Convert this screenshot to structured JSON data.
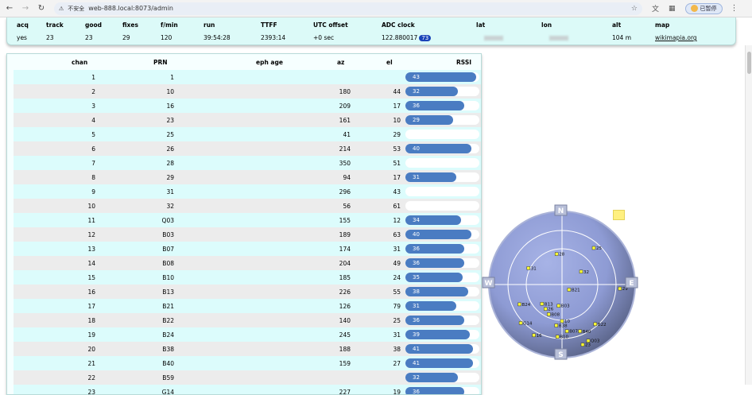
{
  "browser": {
    "security_label": "不安全",
    "url": "web-888.local:8073/admin",
    "profile_label": "已暂停"
  },
  "status": {
    "headers": [
      "acq",
      "track",
      "good",
      "fixes",
      "f/min",
      "run",
      "TTFF",
      "UTC offset",
      "ADC clock",
      "lat",
      "lon",
      "alt",
      "map"
    ],
    "acq": "yes",
    "track": "23",
    "good": "23",
    "fixes": "29",
    "fmin": "120",
    "run": "39:54:28",
    "ttff": "2393:14",
    "utc_offset": "+0 sec",
    "adc_clock": "122.880017",
    "adc_badge": "73",
    "alt": "104 m",
    "map_link": "wikimapia.org"
  },
  "table": {
    "headers": {
      "chan": "chan",
      "prn": "PRN",
      "eph_age": "eph age",
      "az": "az",
      "el": "el",
      "rssi": "RSSI"
    },
    "rows": [
      {
        "chan": "1",
        "prn": "1",
        "az": "",
        "el": "",
        "rssi": 43
      },
      {
        "chan": "2",
        "prn": "10",
        "az": "180",
        "el": "44",
        "rssi": 32
      },
      {
        "chan": "3",
        "prn": "16",
        "az": "209",
        "el": "17",
        "rssi": 36
      },
      {
        "chan": "4",
        "prn": "23",
        "az": "161",
        "el": "10",
        "rssi": 29
      },
      {
        "chan": "5",
        "prn": "25",
        "az": "41",
        "el": "29",
        "rssi": null
      },
      {
        "chan": "6",
        "prn": "26",
        "az": "214",
        "el": "53",
        "rssi": 40
      },
      {
        "chan": "7",
        "prn": "28",
        "az": "350",
        "el": "51",
        "rssi": null
      },
      {
        "chan": "8",
        "prn": "29",
        "az": "94",
        "el": "17",
        "rssi": 31
      },
      {
        "chan": "9",
        "prn": "31",
        "az": "296",
        "el": "43",
        "rssi": null
      },
      {
        "chan": "10",
        "prn": "32",
        "az": "56",
        "el": "61",
        "rssi": null
      },
      {
        "chan": "11",
        "prn": "Q03",
        "az": "155",
        "el": "12",
        "rssi": 34
      },
      {
        "chan": "12",
        "prn": "B03",
        "az": "189",
        "el": "63",
        "rssi": 40
      },
      {
        "chan": "13",
        "prn": "B07",
        "az": "174",
        "el": "31",
        "rssi": 36
      },
      {
        "chan": "14",
        "prn": "B08",
        "az": "204",
        "el": "49",
        "rssi": 36
      },
      {
        "chan": "15",
        "prn": "B10",
        "az": "185",
        "el": "24",
        "rssi": 35
      },
      {
        "chan": "16",
        "prn": "B13",
        "az": "226",
        "el": "55",
        "rssi": 38
      },
      {
        "chan": "17",
        "prn": "B21",
        "az": "126",
        "el": "79",
        "rssi": 31
      },
      {
        "chan": "18",
        "prn": "B22",
        "az": "140",
        "el": "25",
        "rssi": 36
      },
      {
        "chan": "19",
        "prn": "B24",
        "az": "245",
        "el": "31",
        "rssi": 39
      },
      {
        "chan": "20",
        "prn": "B38",
        "az": "188",
        "el": "38",
        "rssi": 41
      },
      {
        "chan": "21",
        "prn": "B40",
        "az": "159",
        "el": "27",
        "rssi": 41
      },
      {
        "chan": "22",
        "prn": "B59",
        "az": "",
        "el": "",
        "rssi": 32
      },
      {
        "chan": "23",
        "prn": "G14",
        "az": "227",
        "el": "19",
        "rssi": 36
      }
    ]
  },
  "skyplot": {
    "compass": {
      "n": "N",
      "e": "E",
      "s": "S",
      "w": "W"
    },
    "satellites": [
      {
        "label": "25",
        "az": 41,
        "el": 29
      },
      {
        "label": "28",
        "az": 350,
        "el": 51
      },
      {
        "label": "31",
        "az": 296,
        "el": 43
      },
      {
        "label": "32",
        "az": 56,
        "el": 61
      },
      {
        "label": "29",
        "az": 94,
        "el": 17
      },
      {
        "label": "B21",
        "az": 126,
        "el": 79
      },
      {
        "label": "B24",
        "az": 245,
        "el": 31
      },
      {
        "label": "B13",
        "az": 226,
        "el": 55
      },
      {
        "label": "B03",
        "az": 189,
        "el": 63
      },
      {
        "label": "26",
        "az": 214,
        "el": 53
      },
      {
        "label": "B08",
        "az": 204,
        "el": 49
      },
      {
        "label": "10",
        "az": 180,
        "el": 44
      },
      {
        "label": "B38",
        "az": 188,
        "el": 38
      },
      {
        "label": "B07",
        "az": 174,
        "el": 31
      },
      {
        "label": "G14",
        "az": 227,
        "el": 19
      },
      {
        "label": "16",
        "az": 209,
        "el": 17
      },
      {
        "label": "B22",
        "az": 140,
        "el": 25
      },
      {
        "label": "B40",
        "az": 159,
        "el": 27
      },
      {
        "label": "B10",
        "az": 185,
        "el": 24
      },
      {
        "label": "Q03",
        "az": 155,
        "el": 12
      },
      {
        "label": "23",
        "az": 161,
        "el": 10
      }
    ]
  },
  "colors": {
    "panel_bg": "#dcfaf8",
    "rssi_bar": "#4a7cc2",
    "sky_disc": "#8e9bd4",
    "sat_marker": "#ffff33"
  }
}
